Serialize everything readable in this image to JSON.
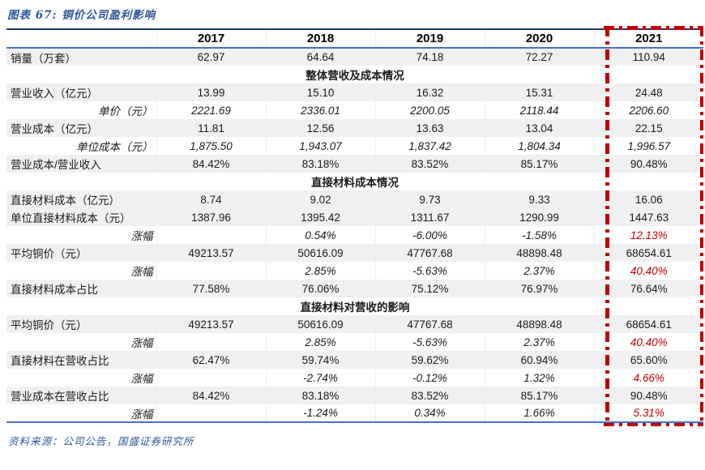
{
  "title": "图表 67: 铜价公司盈利影响",
  "source": "资料来源：公司公告，国盛证券研究所",
  "colors": {
    "accent_blue": "#2b579a",
    "top_rule_dark": "#1f3864",
    "header_rule_blue": "#4472c4",
    "highlight_red": "#c00000",
    "band_gray": "#f0f0f0"
  },
  "table": {
    "columns": [
      "",
      "2017",
      "2018",
      "2019",
      "2020",
      "2021"
    ],
    "highlight_column": "2021",
    "rows": [
      {
        "type": "data",
        "shaded": true,
        "label": "销量（万套）",
        "values": [
          "62.97",
          "64.64",
          "74.18",
          "72.27",
          "110.94"
        ]
      },
      {
        "type": "section",
        "shaded": false,
        "label": "整体营收及成本情况"
      },
      {
        "type": "data",
        "shaded": true,
        "label": "营业收入（亿元）",
        "values": [
          "13.99",
          "15.10",
          "16.32",
          "15.31",
          "24.48"
        ]
      },
      {
        "type": "sub",
        "shaded": false,
        "label": "单价（元）",
        "values": [
          "2221.69",
          "2336.01",
          "2200.05",
          "2118.44",
          "2206.60"
        ]
      },
      {
        "type": "data",
        "shaded": true,
        "label": "营业成本（亿元）",
        "values": [
          "11.81",
          "12.56",
          "13.63",
          "13.04",
          "22.15"
        ]
      },
      {
        "type": "sub",
        "shaded": false,
        "label": "单位成本（元）",
        "values": [
          "1,875.50",
          "1,943.07",
          "1,837.42",
          "1,804.34",
          "1,996.57"
        ]
      },
      {
        "type": "data",
        "shaded": true,
        "label": "营业成本/营业收入",
        "values": [
          "84.42%",
          "83.18%",
          "83.52%",
          "85.17%",
          "90.48%"
        ]
      },
      {
        "type": "section",
        "shaded": false,
        "label": "直接材料成本情况"
      },
      {
        "type": "data",
        "shaded": true,
        "label": "直接材料成本（亿元）",
        "values": [
          "8.74",
          "9.02",
          "9.73",
          "9.33",
          "16.06"
        ]
      },
      {
        "type": "data",
        "shaded": true,
        "label": "单位直接材料成本（元）",
        "values": [
          "1387.96",
          "1395.42",
          "1311.67",
          "1290.99",
          "1447.63"
        ]
      },
      {
        "type": "sub",
        "shaded": false,
        "label": "涨幅",
        "red_last": true,
        "values": [
          "",
          "0.54%",
          "-6.00%",
          "-1.58%",
          "12.13%"
        ]
      },
      {
        "type": "data",
        "shaded": true,
        "label": "平均铜价（元）",
        "values": [
          "49213.57",
          "50616.09",
          "47767.68",
          "48898.48",
          "68654.61"
        ]
      },
      {
        "type": "sub",
        "shaded": false,
        "label": "涨幅",
        "red_last": true,
        "values": [
          "",
          "2.85%",
          "-5.63%",
          "2.37%",
          "40.40%"
        ]
      },
      {
        "type": "data",
        "shaded": true,
        "label": "直接材料成本占比",
        "values": [
          "77.58%",
          "76.06%",
          "75.12%",
          "76.97%",
          "76.64%"
        ]
      },
      {
        "type": "section",
        "shaded": false,
        "label": "直接材料对营收的影响"
      },
      {
        "type": "data",
        "shaded": true,
        "label": "平均铜价（元）",
        "values": [
          "49213.57",
          "50616.09",
          "47767.68",
          "48898.48",
          "68654.61"
        ]
      },
      {
        "type": "sub",
        "shaded": false,
        "label": "涨幅",
        "red_last": true,
        "values": [
          "",
          "2.85%",
          "-5.63%",
          "2.37%",
          "40.40%"
        ]
      },
      {
        "type": "data",
        "shaded": true,
        "label": "直接材料在营收占比",
        "values": [
          "62.47%",
          "59.74%",
          "59.62%",
          "60.94%",
          "65.60%"
        ]
      },
      {
        "type": "sub",
        "shaded": false,
        "label": "涨幅",
        "red_last": true,
        "values": [
          "",
          "-2.74%",
          "-0.12%",
          "1.32%",
          "4.66%"
        ]
      },
      {
        "type": "data",
        "shaded": true,
        "label": "营业成本在营收占比",
        "values": [
          "84.42%",
          "83.18%",
          "83.52%",
          "85.17%",
          "90.48%"
        ]
      },
      {
        "type": "sub",
        "shaded": false,
        "label": "涨幅",
        "red_last": true,
        "values": [
          "",
          "-1.24%",
          "0.34%",
          "1.66%",
          "5.31%"
        ]
      }
    ]
  }
}
